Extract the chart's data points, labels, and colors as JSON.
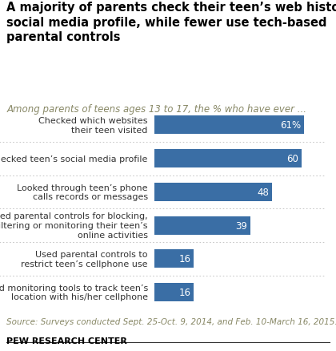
{
  "title": "A majority of parents check their teen’s web history or\nsocial media profile, while fewer use tech-based\nparental controls",
  "subtitle": "Among parents of teens ages 13 to 17, the % who have ever ...",
  "categories": [
    "Checked which websites\ntheir teen visited",
    "Checked teen’s social media profile",
    "Looked through teen’s phone\ncalls records or messages",
    "Used parental controls for blocking,\nfiltering or monitoring their teen’s\nonline activities",
    "Used parental controls to\nrestrict teen’s cellphone use",
    "Used monitoring tools to track teen’s\nlocation with his/her cellphone"
  ],
  "values": [
    61,
    60,
    48,
    39,
    16,
    16
  ],
  "bar_color": "#3a6ea5",
  "label_color": "#ffffff",
  "value_labels": [
    "61%",
    "60",
    "48",
    "39",
    "16",
    "16"
  ],
  "source_text": "Source: Surveys conducted Sept. 25-Oct. 9, 2014, and Feb. 10-March 16, 2015.",
  "brand_text": "PEW RESEARCH CENTER",
  "background_color": "#ffffff",
  "xlim": [
    0,
    70
  ],
  "title_fontsize": 10.5,
  "subtitle_fontsize": 8.5,
  "label_fontsize": 8,
  "value_fontsize": 8.5,
  "source_fontsize": 7.5,
  "subtitle_color": "#888866",
  "source_color": "#888866",
  "separator_color": "#bbbbbb"
}
